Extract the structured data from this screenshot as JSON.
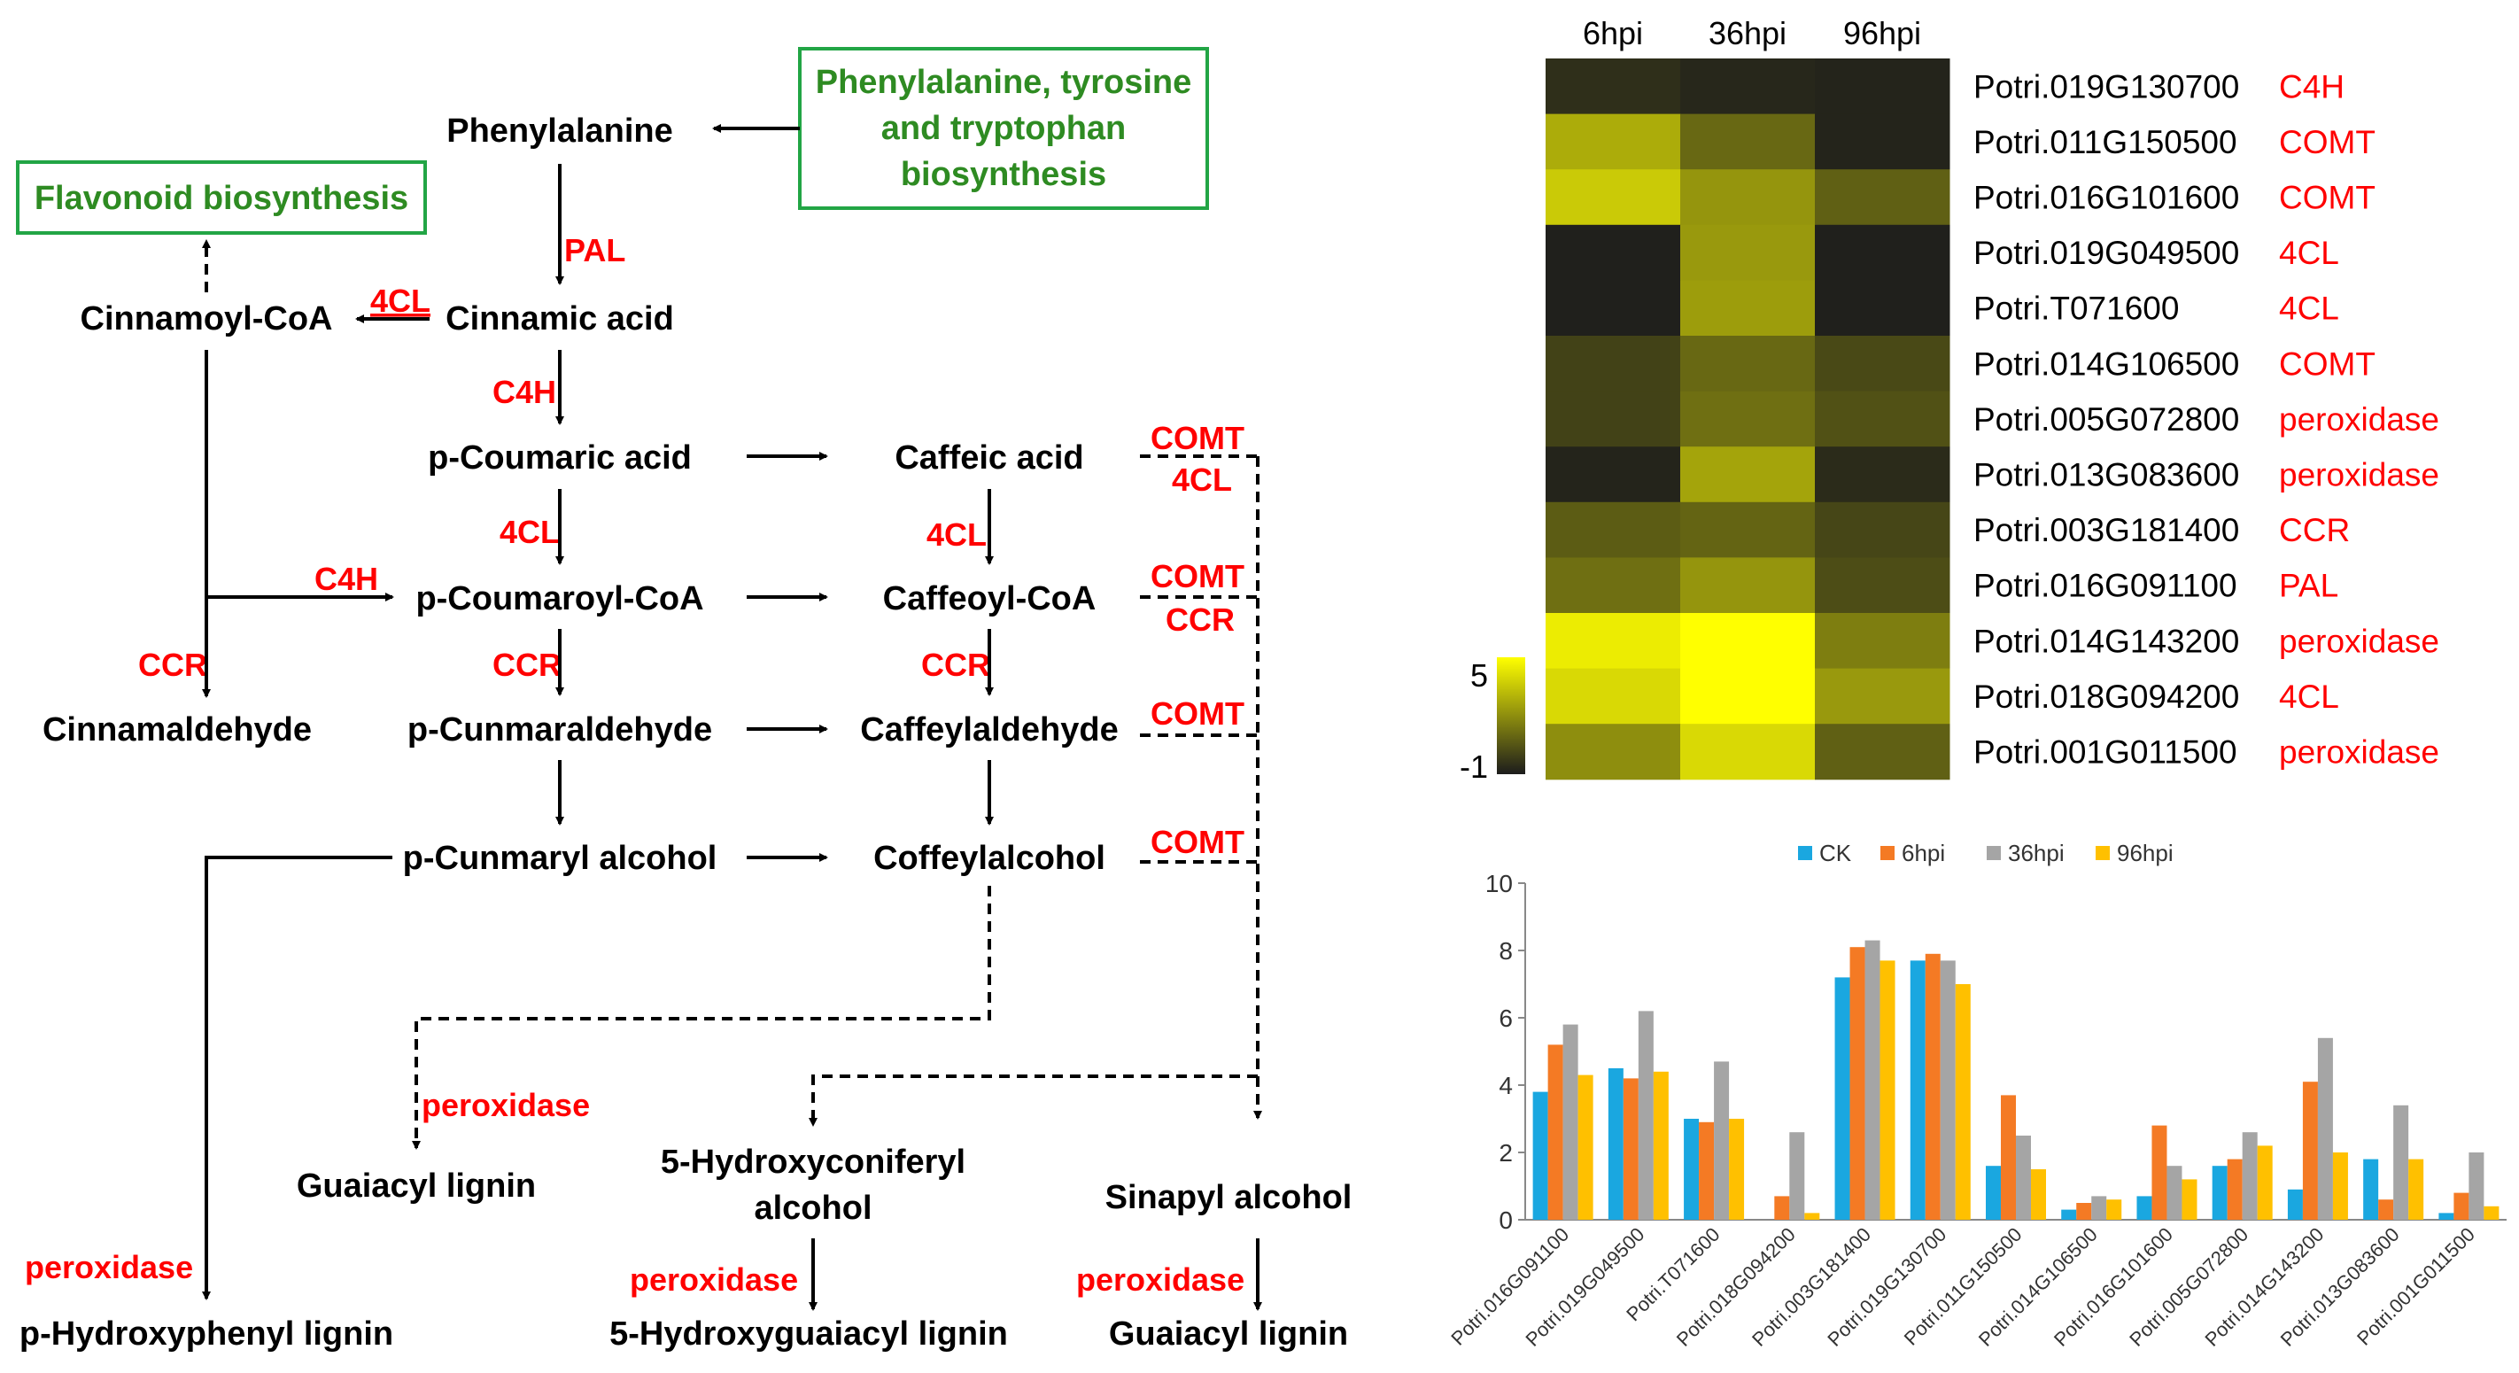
{
  "pathway": {
    "compounds": {
      "phenylalanine": "Phenylalanine",
      "cinnamic_acid": "Cinnamic acid",
      "cinnamoyl_coa": "Cinnamoyl-CoA",
      "p_coumaric_acid": "p-Coumaric acid",
      "caffeic_acid": "Caffeic acid",
      "p_coumaroyl_coa": "p-Coumaroyl-CoA",
      "caffeoyl_coa": "Caffeoyl-CoA",
      "cinnamaldehyde": "Cinnamaldehyde",
      "p_cunmaraldehyde": "p-Cunmaraldehyde",
      "caffeylaldehyde": "Caffeylaldehyde",
      "p_cunmaryl_alcohol": "p-Cunmaryl alcohol",
      "coffeylalcohol": "Coffeylalcohol",
      "guaiacyl_lignin_1": "Guaiacyl lignin",
      "hydroxyconiferyl_line1": "5-Hydroxyconiferyl",
      "hydroxyconiferyl_line2": "alcohol",
      "sinapyl_alcohol": "Sinapyl alcohol",
      "p_hydroxyphenyl_lignin": "p-Hydroxyphenyl lignin",
      "hydroxyguaiacyl_lignin": "5-Hydroxyguaiacyl lignin",
      "guaiacyl_lignin_2": "Guaiacyl lignin"
    },
    "boxes": {
      "flavonoid": "Flavonoid biosynthesis",
      "aa_line1": "Phenylalanine, tyrosine",
      "aa_line2": "and tryptophan",
      "aa_line3": "biosynthesis"
    },
    "enzymes": {
      "pal": "PAL",
      "c4h_1": "C4H",
      "c4h_2": "C4H",
      "fourcl_1": "4CL",
      "fourcl_2": "4CL",
      "fourcl_3": "4CL",
      "fourcl_4": "4CL",
      "ccr_1": "CCR",
      "ccr_2": "CCR",
      "ccr_3": "CCR",
      "ccr_4": "CCR",
      "comt_1": "COMT",
      "comt_2": "COMT",
      "comt_3": "COMT",
      "comt_4": "COMT",
      "peroxidase_1": "peroxidase",
      "peroxidase_2": "peroxidase",
      "peroxidase_3": "peroxidase",
      "peroxidase_4": "peroxidase"
    }
  },
  "heatmap": {
    "columns": [
      "6hpi",
      "36hpi",
      "96hpi"
    ],
    "rows": [
      {
        "gene": "Potri.019G130700",
        "enzyme": "C4H",
        "values": [
          -0.5,
          -0.7,
          -0.8
        ]
      },
      {
        "gene": "Potri.011G150500",
        "enzyme": "COMT",
        "values": [
          2.8,
          1.0,
          -0.8
        ]
      },
      {
        "gene": "Potri.016G101600",
        "enzyme": "COMT",
        "values": [
          3.6,
          2.2,
          0.8
        ]
      },
      {
        "gene": "Potri.019G049500",
        "enzyme": "4CL",
        "values": [
          -0.9,
          2.3,
          -0.9
        ]
      },
      {
        "gene": "Potri.T071600",
        "enzyme": "4CL",
        "values": [
          -0.9,
          2.4,
          -0.9
        ]
      },
      {
        "gene": "Potri.014G106500",
        "enzyme": "COMT",
        "values": [
          0.0,
          1.0,
          0.2
        ]
      },
      {
        "gene": "Potri.005G072800",
        "enzyme": "peroxidase",
        "values": [
          0.0,
          1.2,
          0.4
        ]
      },
      {
        "gene": "Potri.013G083600",
        "enzyme": "peroxidase",
        "values": [
          -0.8,
          2.6,
          -0.6
        ]
      },
      {
        "gene": "Potri.003G181400",
        "enzyme": "CCR",
        "values": [
          0.7,
          0.9,
          0.1
        ]
      },
      {
        "gene": "Potri.016G091100",
        "enzyme": "PAL",
        "values": [
          1.2,
          2.2,
          0.3
        ]
      },
      {
        "gene": "Potri.014G143200",
        "enzyme": "peroxidase",
        "values": [
          4.5,
          5.0,
          1.6
        ]
      },
      {
        "gene": "Potri.018G094200",
        "enzyme": "4CL",
        "values": [
          4.0,
          5.0,
          2.3
        ]
      },
      {
        "gene": "Potri.001G011500",
        "enzyme": "peroxidase",
        "values": [
          2.0,
          4.0,
          0.8
        ]
      }
    ],
    "scale": {
      "max_label": "5",
      "min_label": "-1",
      "min": -1,
      "max": 5
    }
  },
  "chart_data": {
    "type": "bar",
    "title": "",
    "xlabel": "",
    "ylabel": "",
    "ylim": [
      0,
      10
    ],
    "yticks": [
      0,
      2,
      4,
      6,
      8,
      10
    ],
    "grid": false,
    "legend_position": "top",
    "categories": [
      "Potri.016G091100",
      "Potri.019G049500",
      "Potri.T071600",
      "Potri.018G094200",
      "Potri.003G181400",
      "Potri.019G130700",
      "Potri.011G150500",
      "Potri.014G106500",
      "Potri.016G101600",
      "Potri.005G072800",
      "Potri.014G143200",
      "Potri.013G083600",
      "Potri.001G011500"
    ],
    "series": [
      {
        "name": "CK",
        "color": "#1aa7e0",
        "values": [
          3.8,
          4.5,
          3.0,
          0.0,
          7.2,
          7.7,
          1.6,
          0.3,
          0.7,
          1.6,
          0.9,
          1.8,
          0.2
        ]
      },
      {
        "name": "6hpi",
        "color": "#f47a24",
        "values": [
          5.2,
          4.2,
          2.9,
          0.7,
          8.1,
          7.9,
          3.7,
          0.5,
          2.8,
          1.8,
          4.1,
          0.6,
          0.8
        ]
      },
      {
        "name": "36hpi",
        "color": "#a5a5a5",
        "values": [
          5.8,
          6.2,
          4.7,
          2.6,
          8.3,
          7.7,
          2.5,
          0.7,
          1.6,
          2.6,
          5.4,
          3.4,
          2.0
        ]
      },
      {
        "name": "96hpi",
        "color": "#ffc000",
        "values": [
          4.3,
          4.4,
          3.0,
          0.2,
          7.7,
          7.0,
          1.5,
          0.6,
          1.2,
          2.2,
          2.0,
          1.8,
          0.4
        ]
      }
    ]
  },
  "colors": {
    "black": "#000000",
    "red": "#ff0000",
    "green": "#2e8b22",
    "box_border": "#22a545",
    "heat_low": "#1c1c1c",
    "heat_high": "#ffff00"
  }
}
